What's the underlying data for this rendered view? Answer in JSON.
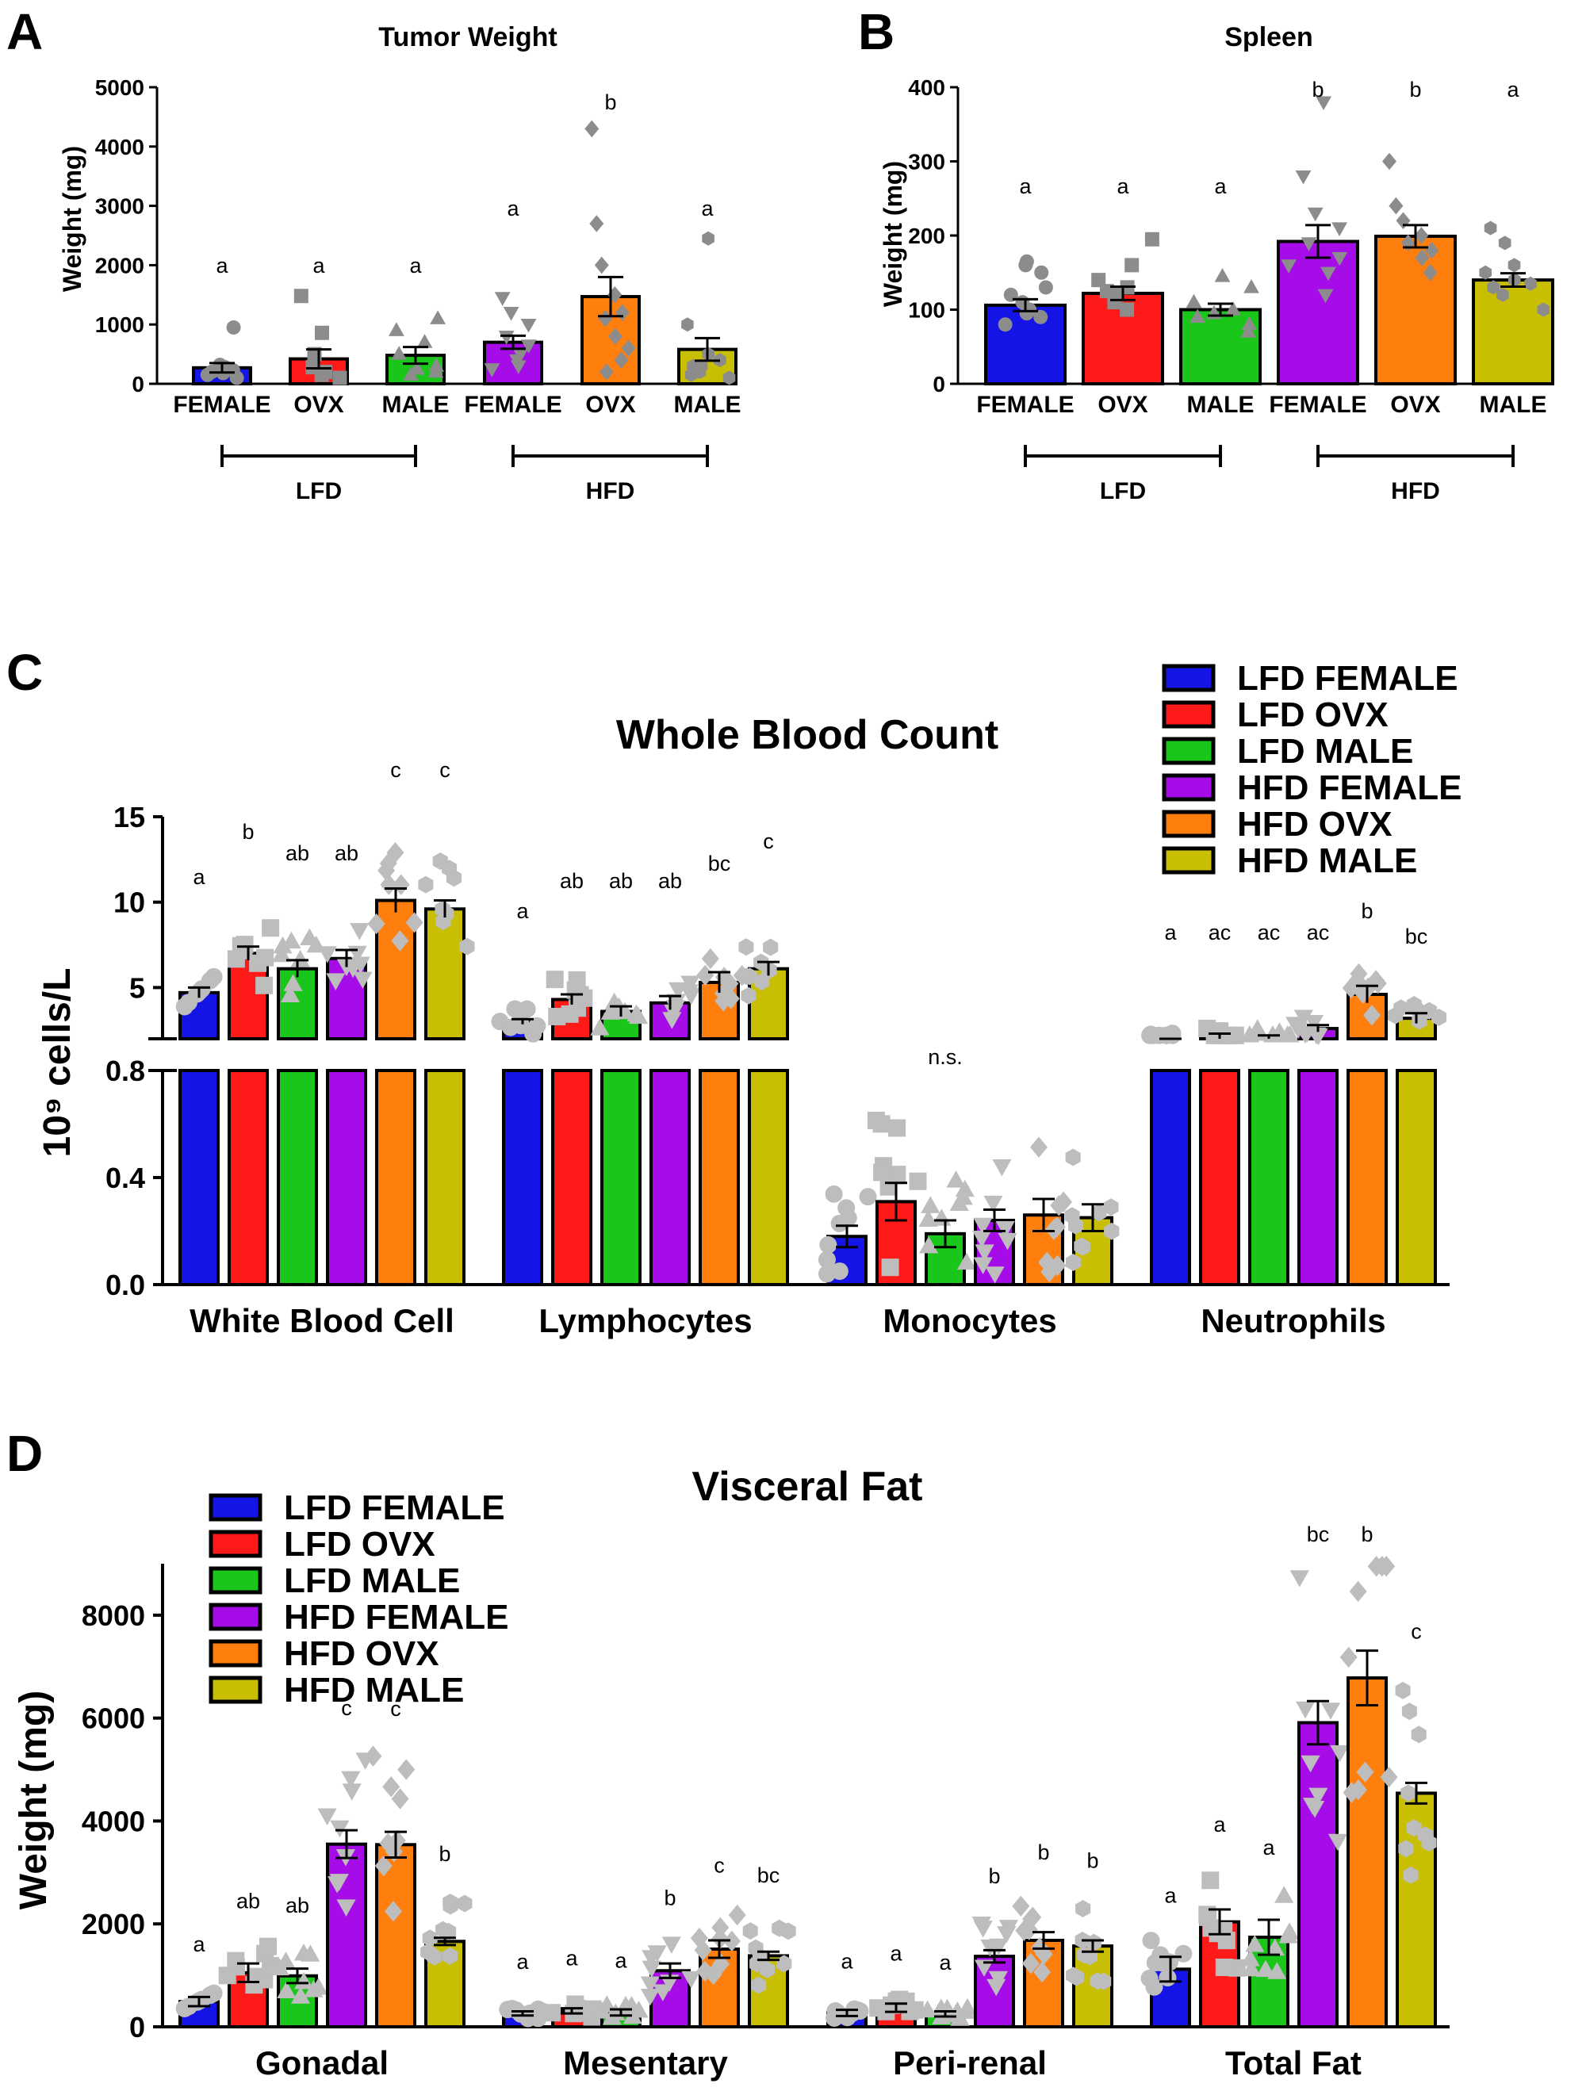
{
  "colors": {
    "lfd_female": "#1414e6",
    "lfd_ovx": "#ff1a1a",
    "lfd_male": "#19c619",
    "hfd_female": "#a50ce8",
    "hfd_ovx": "#ff7f0e",
    "hfd_male": "#c8bf05",
    "points": "#8c8c8c",
    "points_light": "#bdbdbd"
  },
  "chart_data": [
    {
      "panel": "A",
      "type": "bar",
      "title": "Tumor Weight",
      "ylabel": "Weight (mg)",
      "ylim": [
        0,
        5000
      ],
      "yticks": [
        "0",
        "1000",
        "2000",
        "3000",
        "4000",
        "5000"
      ],
      "categories": [
        "FEMALE",
        "OVX",
        "MALE",
        "FEMALE",
        "OVX",
        "MALE"
      ],
      "groups": [
        {
          "label": "LFD",
          "from": 0,
          "to": 2
        },
        {
          "label": "HFD",
          "from": 3,
          "to": 5
        }
      ],
      "values": [
        270,
        420,
        480,
        700,
        1470,
        580
      ],
      "sem": [
        80,
        160,
        140,
        110,
        330,
        190
      ],
      "letters": [
        "a",
        "a",
        "a",
        "a",
        "b",
        "a"
      ],
      "points": [
        [
          150,
          230,
          280,
          320,
          200,
          100,
          950,
          250,
          180
        ],
        [
          150,
          280,
          500,
          860,
          1480,
          200,
          100
        ],
        [
          200,
          300,
          500,
          700,
          900,
          1100,
          250,
          150
        ],
        [
          300,
          500,
          650,
          800,
          1000,
          1200,
          1450,
          400,
          250
        ],
        [
          400,
          800,
          1200,
          1500,
          2000,
          2700,
          4300,
          1100,
          600,
          200
        ],
        [
          100,
          200,
          300,
          500,
          1000,
          2450,
          300,
          150,
          400
        ]
      ]
    },
    {
      "panel": "B",
      "type": "bar",
      "title": "Spleen",
      "ylabel": "Weight (mg)",
      "ylim": [
        0,
        400
      ],
      "yticks": [
        "0",
        "100",
        "200",
        "300",
        "400"
      ],
      "categories": [
        "FEMALE",
        "OVX",
        "MALE",
        "FEMALE",
        "OVX",
        "MALE"
      ],
      "groups": [
        {
          "label": "LFD",
          "from": 0,
          "to": 2
        },
        {
          "label": "HFD",
          "from": 3,
          "to": 5
        }
      ],
      "values": [
        106,
        122,
        100,
        192,
        199,
        140
      ],
      "sem": [
        8,
        9,
        8,
        22,
        15,
        9
      ],
      "letters": [
        "a",
        "a",
        "a",
        "b",
        "b",
        "a"
      ],
      "points": [
        [
          80,
          90,
          100,
          110,
          120,
          130,
          150,
          160,
          165,
          95
        ],
        [
          100,
          110,
          120,
          130,
          140,
          160,
          195,
          125
        ],
        [
          70,
          80,
          90,
          100,
          110,
          130,
          145,
          95
        ],
        [
          120,
          150,
          170,
          190,
          210,
          230,
          280,
          380,
          160
        ],
        [
          150,
          170,
          180,
          200,
          220,
          240,
          300,
          190
        ],
        [
          100,
          120,
          130,
          140,
          150,
          160,
          190,
          210,
          135
        ]
      ]
    },
    {
      "panel": "C",
      "type": "bar",
      "title": "Whole Blood Count",
      "ylabel": "10⁹ cells/L",
      "axis_break": {
        "lower": [
          0,
          0.8
        ],
        "upper": [
          2,
          15
        ]
      },
      "yticks_lower": [
        "0.0",
        "0.4",
        "0.8"
      ],
      "yticks_upper": [
        "5",
        "10",
        "15"
      ],
      "categories": [
        "White Blood Cell",
        "Lymphocytes",
        "Monocytes",
        "Neutrophils"
      ],
      "legend": [
        "LFD FEMALE",
        "LFD OVX",
        "LFD MALE",
        "HFD FEMALE",
        "HFD OVX",
        "HFD MALE"
      ],
      "legend_position": "top-right",
      "series": [
        {
          "name": "LFD FEMALE",
          "values": [
            4.7,
            3.0,
            0.18,
            1.8
          ],
          "sem": [
            0.3,
            0.15,
            0.04,
            0.2
          ]
        },
        {
          "name": "LFD OVX",
          "values": [
            7.0,
            4.3,
            0.31,
            2.1
          ],
          "sem": [
            0.4,
            0.3,
            0.07,
            0.2
          ]
        },
        {
          "name": "LFD MALE",
          "values": [
            6.1,
            3.6,
            0.19,
            2.0
          ],
          "sem": [
            0.5,
            0.3,
            0.05,
            0.2
          ]
        },
        {
          "name": "HFD FEMALE",
          "values": [
            6.7,
            4.1,
            0.24,
            2.6
          ],
          "sem": [
            0.5,
            0.4,
            0.04,
            0.2
          ]
        },
        {
          "name": "HFD OVX",
          "values": [
            10.1,
            5.3,
            0.26,
            4.6
          ],
          "sem": [
            0.7,
            0.6,
            0.06,
            0.5
          ]
        },
        {
          "name": "HFD MALE",
          "values": [
            9.6,
            6.1,
            0.25,
            3.2
          ],
          "sem": [
            0.5,
            0.4,
            0.05,
            0.3
          ]
        }
      ],
      "letters": [
        [
          "a",
          "b",
          "ab",
          "ab",
          "c",
          "c"
        ],
        [
          "a",
          "ab",
          "ab",
          "ab",
          "bc",
          "c"
        ],
        [
          "",
          "",
          "n.s.",
          "",
          "",
          ""
        ],
        [
          "a",
          "ac",
          "ac",
          "ac",
          "b",
          "bc"
        ]
      ]
    },
    {
      "panel": "D",
      "type": "bar",
      "title": "Visceral Fat",
      "ylabel": "Weight (mg)",
      "ylim": [
        0,
        9000
      ],
      "yticks": [
        "0",
        "2000",
        "4000",
        "6000",
        "8000"
      ],
      "categories": [
        "Gonadal",
        "Mesentary",
        "Peri-renal",
        "Total Fat"
      ],
      "legend": [
        "LFD FEMALE",
        "LFD OVX",
        "LFD MALE",
        "HFD FEMALE",
        "HFD OVX",
        "HFD MALE"
      ],
      "legend_position": "top-left",
      "series": [
        {
          "name": "LFD FEMALE",
          "values": [
            490,
            260,
            270,
            1120
          ],
          "sem": [
            90,
            40,
            60,
            240
          ]
        },
        {
          "name": "LFD OVX",
          "values": [
            1050,
            310,
            370,
            2040
          ],
          "sem": [
            180,
            50,
            80,
            240
          ]
        },
        {
          "name": "LFD MALE",
          "values": [
            990,
            280,
            250,
            1740
          ],
          "sem": [
            140,
            60,
            50,
            340
          ]
        },
        {
          "name": "HFD FEMALE",
          "values": [
            3550,
            1090,
            1370,
            5910
          ],
          "sem": [
            270,
            140,
            120,
            420
          ]
        },
        {
          "name": "HFD OVX",
          "values": [
            3540,
            1510,
            1680,
            6780
          ],
          "sem": [
            250,
            170,
            160,
            530
          ]
        },
        {
          "name": "HFD MALE",
          "values": [
            1660,
            1380,
            1570,
            4540
          ],
          "sem": [
            70,
            80,
            110,
            200
          ]
        }
      ],
      "letters": [
        [
          "a",
          "ab",
          "ab",
          "c",
          "c",
          "b"
        ],
        [
          "a",
          "a",
          "a",
          "b",
          "c",
          "bc"
        ],
        [
          "a",
          "a",
          "a",
          "b",
          "b",
          "b"
        ],
        [
          "a",
          "a",
          "a",
          "bc",
          "b",
          "c"
        ]
      ]
    }
  ]
}
